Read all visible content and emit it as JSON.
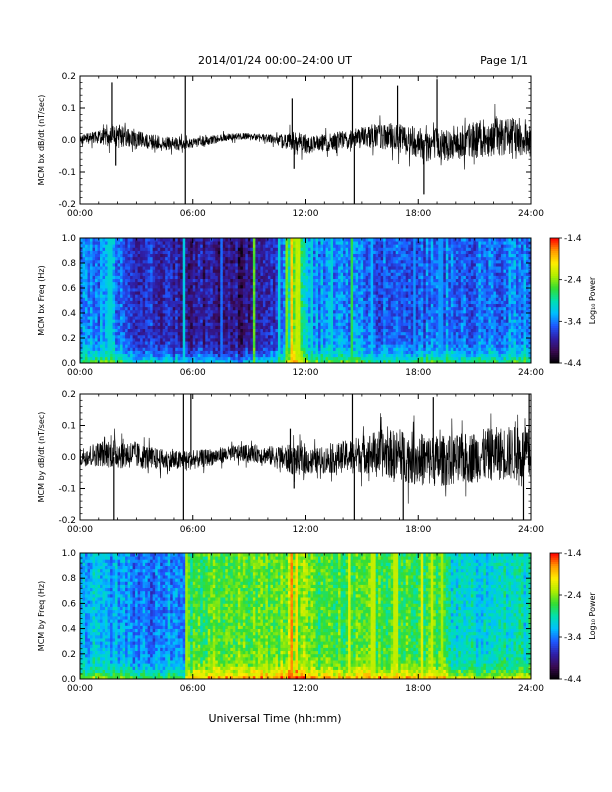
{
  "header": {
    "title": "2014/01/24  00:00–24:00 UT",
    "page": "Page 1/1"
  },
  "footer": {
    "xlabel": "Universal Time (hh:mm)"
  },
  "colors": {
    "trace": "#000000",
    "colormap": [
      "#000000",
      "#3a0a52",
      "#2f1fa8",
      "#1e57ff",
      "#00bfff",
      "#00e0b0",
      "#33dd33",
      "#b0ee00",
      "#ffee00",
      "#ff9900",
      "#ff0000"
    ]
  },
  "chart_data": [
    {
      "type": "line",
      "ylabel": "MCM bx dB/dt (nT/sec)",
      "x_ticks": [
        "00:00",
        "06:00",
        "12:00",
        "18:00",
        "24:00"
      ],
      "xlim": [
        0,
        24
      ],
      "ylim": [
        -0.2,
        0.2
      ],
      "y_ticks": [
        "0.2",
        "0.1",
        "0.0",
        "-0.1",
        "-0.2"
      ],
      "baseline_noise": [
        [
          0,
          0.015
        ],
        [
          1,
          0.02
        ],
        [
          1.8,
          0.04
        ],
        [
          3,
          0.025
        ],
        [
          5,
          0.02
        ],
        [
          6,
          0.015
        ],
        [
          9,
          0.01
        ],
        [
          10.5,
          0.015
        ],
        [
          11.4,
          0.04
        ],
        [
          12.5,
          0.025
        ],
        [
          14,
          0.03
        ],
        [
          16,
          0.04
        ],
        [
          18,
          0.05
        ],
        [
          20,
          0.055
        ],
        [
          22,
          0.06
        ],
        [
          24,
          0.06
        ]
      ],
      "spikes": [
        {
          "t": 1.7,
          "v": 0.18
        },
        {
          "t": 1.9,
          "v": -0.08
        },
        {
          "t": 5.6,
          "v": 0.21
        },
        {
          "t": 5.6,
          "v": -0.21
        },
        {
          "t": 11.3,
          "v": 0.13
        },
        {
          "t": 11.4,
          "v": -0.09
        },
        {
          "t": 14.5,
          "v": 0.2
        },
        {
          "t": 14.6,
          "v": -0.21
        },
        {
          "t": 16.9,
          "v": 0.17
        },
        {
          "t": 18.3,
          "v": -0.17
        },
        {
          "t": 19.0,
          "v": 0.19
        }
      ]
    },
    {
      "type": "heatmap",
      "ylabel": "MCM bx Freq (Hz)",
      "colorbar_label": "Log₁₀ Power",
      "x_ticks": [
        "00:00",
        "06:00",
        "12:00",
        "18:00",
        "24:00"
      ],
      "xlim": [
        0,
        24
      ],
      "ylim": [
        0.0,
        1.0
      ],
      "y_ticks": [
        "1.0",
        "0.8",
        "0.6",
        "0.4",
        "0.2",
        "0.0"
      ],
      "clim": [
        -4.4,
        -1.4
      ],
      "colorbar_ticks": [
        "-1.4",
        "-2.4",
        "-3.4",
        "-4.4"
      ],
      "activity": [
        [
          0,
          -3.4
        ],
        [
          1.5,
          -3.3
        ],
        [
          3,
          -3.7
        ],
        [
          5,
          -3.8
        ],
        [
          7,
          -3.9
        ],
        [
          9,
          -4.0
        ],
        [
          10.5,
          -3.7
        ],
        [
          11.4,
          -2.6
        ],
        [
          12.5,
          -3.3
        ],
        [
          14,
          -3.4
        ],
        [
          16,
          -3.5
        ],
        [
          18,
          -3.5
        ],
        [
          20,
          -3.45
        ],
        [
          24,
          -3.4
        ]
      ],
      "bright_columns": [
        {
          "t": 1.6,
          "v": -3.0
        },
        {
          "t": 5.5,
          "v": -3.0
        },
        {
          "t": 7.5,
          "v": -3.4
        },
        {
          "t": 9.3,
          "v": -2.4
        },
        {
          "t": 10.6,
          "v": -3.0
        },
        {
          "t": 11.0,
          "v": -2.4
        },
        {
          "t": 11.3,
          "v": -1.8
        },
        {
          "t": 11.6,
          "v": -2.2
        },
        {
          "t": 12.3,
          "v": -3.0
        },
        {
          "t": 13.4,
          "v": -3.0
        },
        {
          "t": 14.5,
          "v": -2.6
        },
        {
          "t": 15.5,
          "v": -3.2
        },
        {
          "t": 17.8,
          "v": -3.3
        },
        {
          "t": 19.2,
          "v": -3.3
        }
      ]
    },
    {
      "type": "line",
      "ylabel": "MCM by dB/dt (nT/sec)",
      "x_ticks": [
        "00:00",
        "06:00",
        "12:00",
        "18:00",
        "24:00"
      ],
      "xlim": [
        0,
        24
      ],
      "ylim": [
        -0.2,
        0.2
      ],
      "y_ticks": [
        "0.2",
        "0.1",
        "0.0",
        "-0.1",
        "-0.2"
      ],
      "baseline_noise": [
        [
          0,
          0.03
        ],
        [
          1,
          0.04
        ],
        [
          2,
          0.05
        ],
        [
          4,
          0.035
        ],
        [
          6,
          0.03
        ],
        [
          8,
          0.025
        ],
        [
          10,
          0.03
        ],
        [
          11.4,
          0.05
        ],
        [
          12.5,
          0.04
        ],
        [
          14,
          0.05
        ],
        [
          15,
          0.06
        ],
        [
          16,
          0.075
        ],
        [
          18,
          0.085
        ],
        [
          20,
          0.08
        ],
        [
          22,
          0.085
        ],
        [
          24,
          0.09
        ]
      ],
      "spikes": [
        {
          "t": 1.8,
          "v": -0.2
        },
        {
          "t": 5.5,
          "v": 0.2
        },
        {
          "t": 5.5,
          "v": -0.21
        },
        {
          "t": 5.9,
          "v": 0.2
        },
        {
          "t": 11.2,
          "v": 0.09
        },
        {
          "t": 11.4,
          "v": -0.1
        },
        {
          "t": 14.5,
          "v": 0.2
        },
        {
          "t": 14.6,
          "v": -0.21
        },
        {
          "t": 17.2,
          "v": -0.2
        },
        {
          "t": 18.8,
          "v": 0.19
        },
        {
          "t": 23.6,
          "v": -0.2
        },
        {
          "t": 23.9,
          "v": 0.2
        }
      ]
    },
    {
      "type": "heatmap",
      "ylabel": "MCM by Freq (Hz)",
      "colorbar_label": "Log₁₀ Power",
      "x_ticks": [
        "00:00",
        "06:00",
        "12:00",
        "18:00",
        "24:00"
      ],
      "xlim": [
        0,
        24
      ],
      "ylim": [
        0.0,
        1.0
      ],
      "y_ticks": [
        "1.0",
        "0.8",
        "0.6",
        "0.4",
        "0.2",
        "0.0"
      ],
      "clim": [
        -4.4,
        -1.4
      ],
      "colorbar_ticks": [
        "-1.4",
        "-2.4",
        "-3.4",
        "-4.4"
      ],
      "activity": [
        [
          0,
          -3.1
        ],
        [
          2,
          -3.3
        ],
        [
          4,
          -3.4
        ],
        [
          5.6,
          -3.3
        ],
        [
          5.7,
          -2.7
        ],
        [
          8,
          -2.55
        ],
        [
          10,
          -2.6
        ],
        [
          11.4,
          -2.3
        ],
        [
          12.5,
          -2.6
        ],
        [
          15,
          -2.6
        ],
        [
          18,
          -2.6
        ],
        [
          19.5,
          -2.7
        ],
        [
          19.6,
          -3.0
        ],
        [
          22,
          -3.0
        ],
        [
          24,
          -3.0
        ]
      ],
      "bright_columns": [
        {
          "t": 5.7,
          "v": -2.3
        },
        {
          "t": 11.3,
          "v": -1.6
        },
        {
          "t": 11.5,
          "v": -1.9
        },
        {
          "t": 14.3,
          "v": -2.1
        },
        {
          "t": 15.6,
          "v": -2.2
        },
        {
          "t": 16.8,
          "v": -2.2
        },
        {
          "t": 18.2,
          "v": -2.1
        },
        {
          "t": 18.7,
          "v": -2.2
        },
        {
          "t": 19.3,
          "v": -2.3
        }
      ]
    }
  ]
}
